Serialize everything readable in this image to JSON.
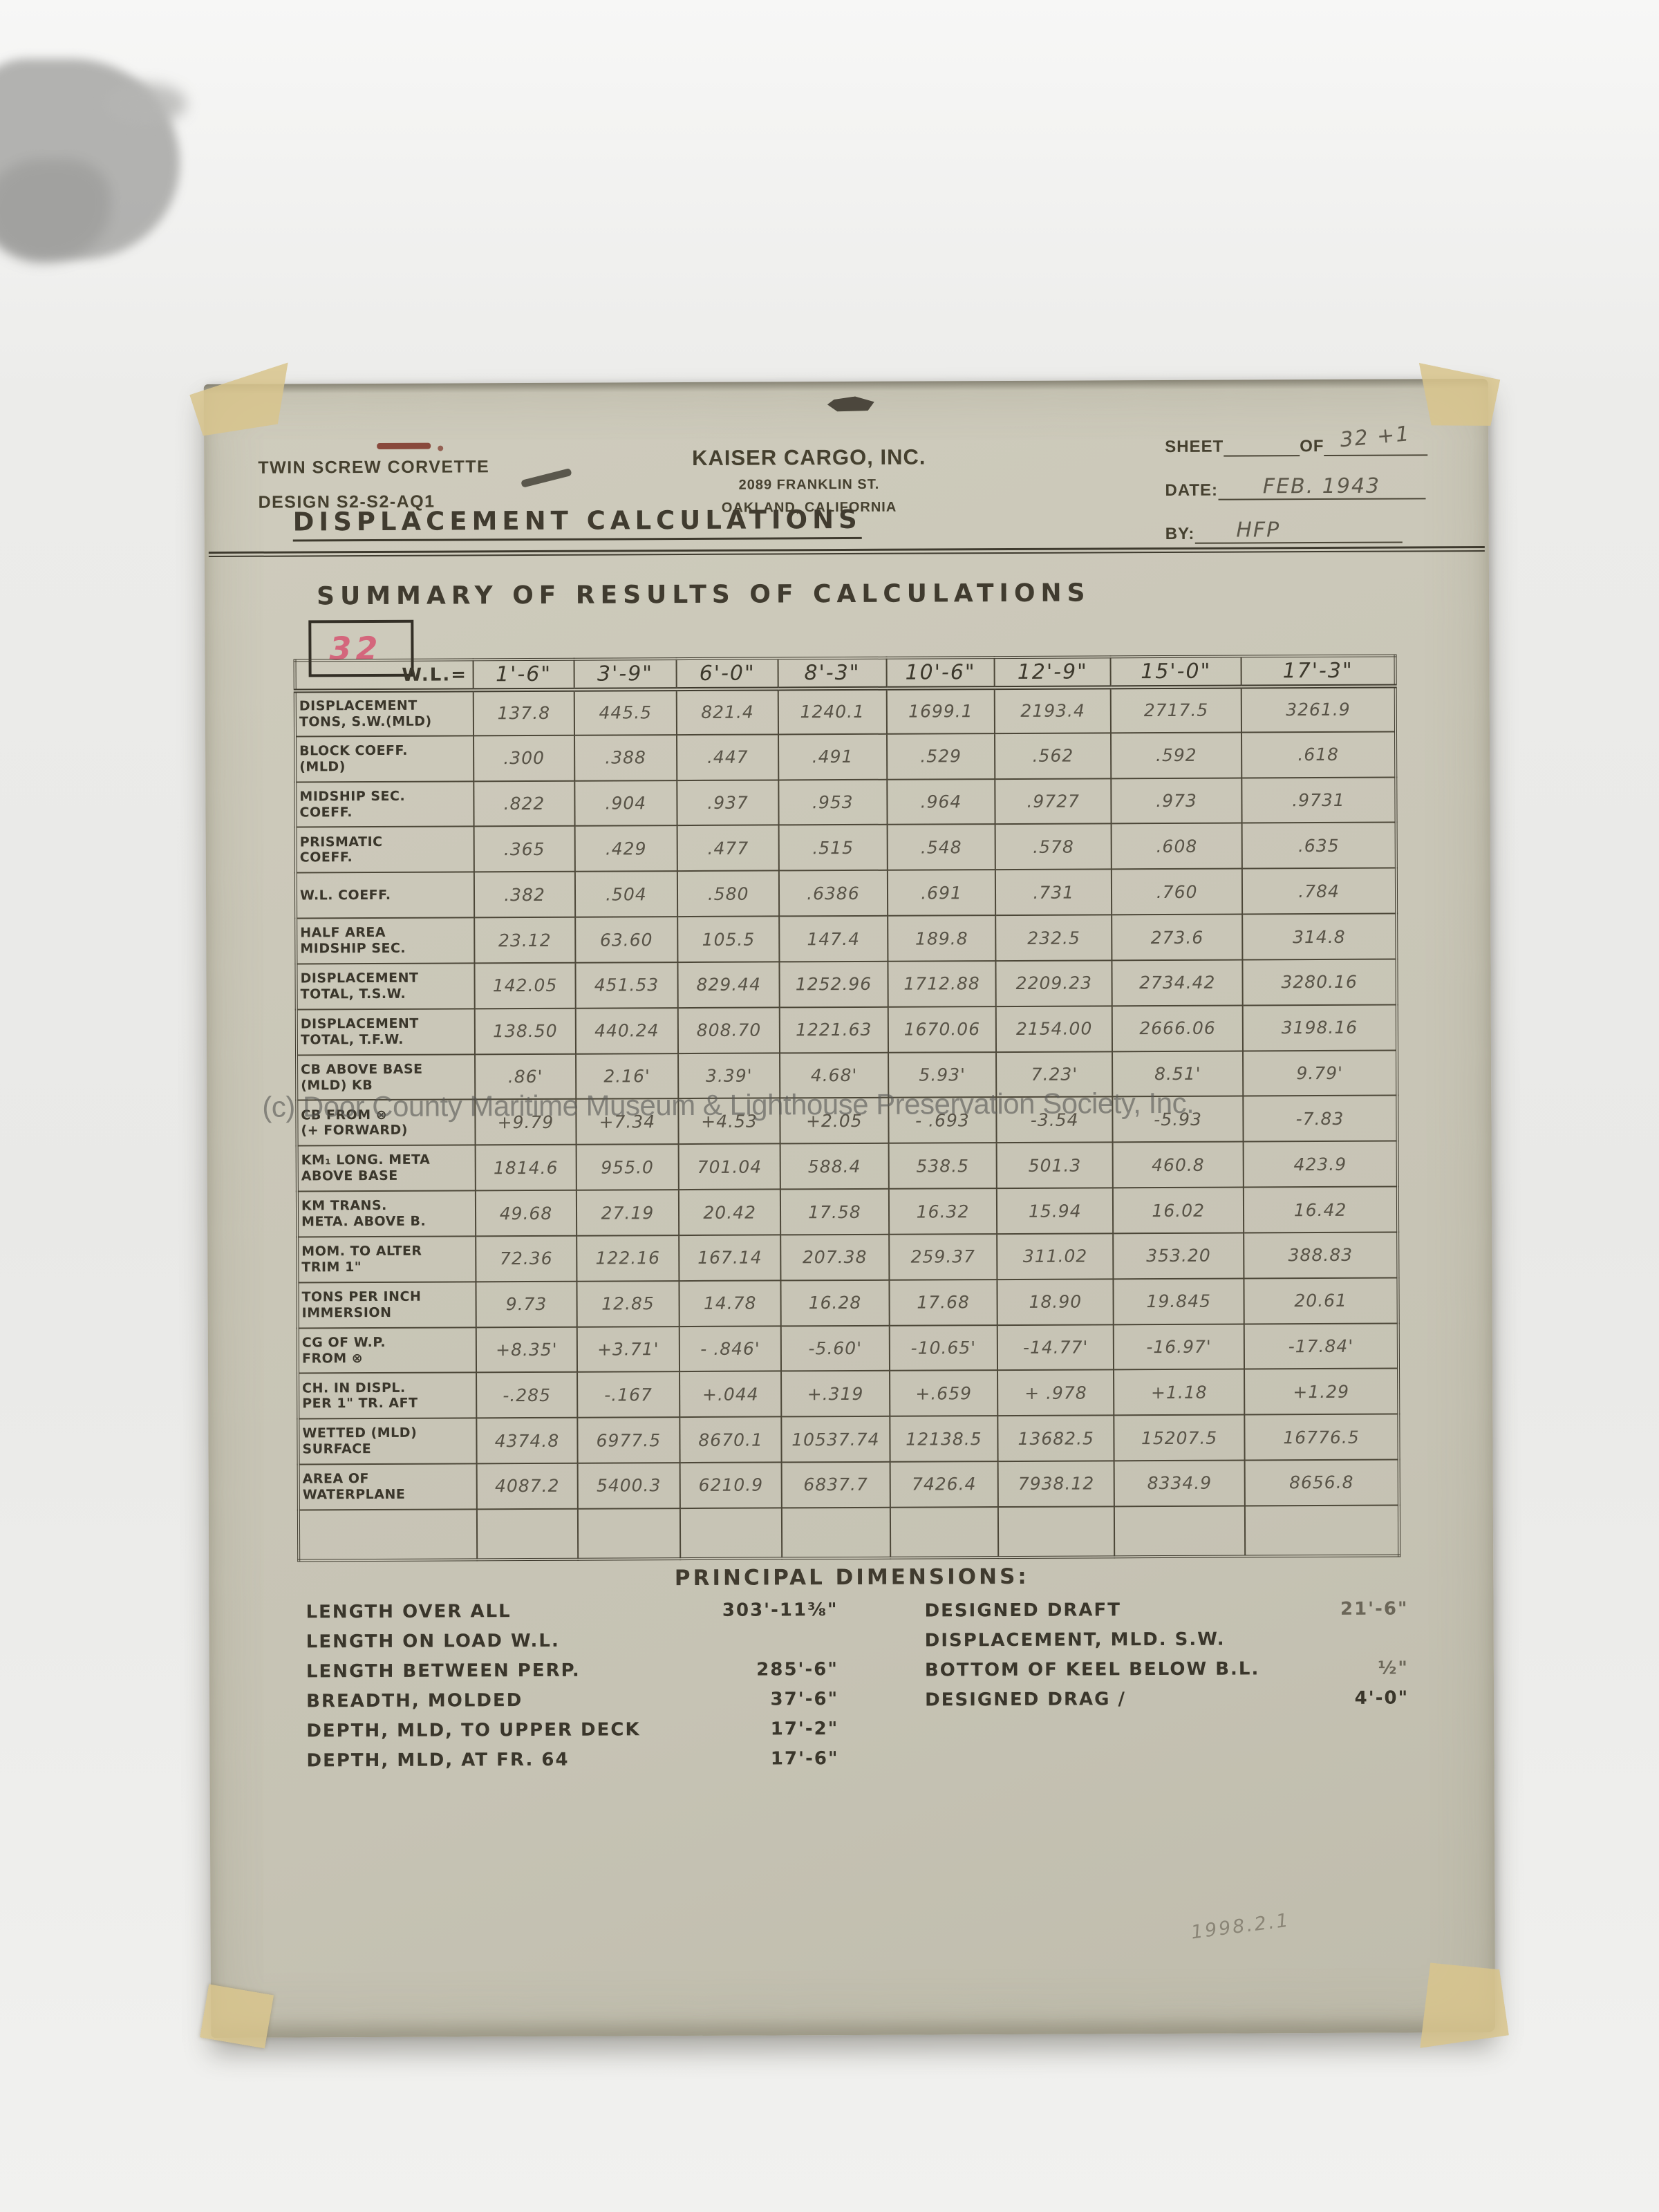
{
  "header": {
    "left": {
      "line1": "TWIN SCREW CORVETTE",
      "line2": "DESIGN S2-S2-AQ1"
    },
    "center": {
      "company": "KAISER CARGO, INC.",
      "address": "2089 FRANKLIN ST.",
      "city": "OAKLAND, CALIFORNIA"
    },
    "right": {
      "sheet_label": "SHEET",
      "of_label": "OF",
      "sheet_value": "32 +1",
      "date_label": "DATE:",
      "date_value": "FEB.  1943",
      "by_label": "BY:",
      "by_value": "HFP"
    }
  },
  "title": "DISPLACEMENT CALCULATIONS",
  "summary_title": "SUMMARY OF RESULTS OF CALCULATIONS",
  "page_number": "32",
  "table": {
    "corner_label": "W.L.=",
    "columns": [
      "1'-6\"",
      "3'-9\"",
      "6'-0\"",
      "8'-3\"",
      "10'-6\"",
      "12'-9\"",
      "15'-0\"",
      "17'-3\""
    ],
    "rows": [
      {
        "label": "DISPLACEMENT\nTONS, S.W.(MLD)",
        "values": [
          "137.8",
          "445.5",
          "821.4",
          "1240.1",
          "1699.1",
          "2193.4",
          "2717.5",
          "3261.9"
        ]
      },
      {
        "label": "BLOCK COEFF.\n(MLD)",
        "values": [
          ".300",
          ".388",
          ".447",
          ".491",
          ".529",
          ".562",
          ".592",
          ".618"
        ]
      },
      {
        "label": "MIDSHIP SEC.\nCOEFF.",
        "values": [
          ".822",
          ".904",
          ".937",
          ".953",
          ".964",
          ".9727",
          ".973",
          ".9731"
        ]
      },
      {
        "label": "PRISMATIC\nCOEFF.",
        "values": [
          ".365",
          ".429",
          ".477",
          ".515",
          ".548",
          ".578",
          ".608",
          ".635"
        ]
      },
      {
        "label": "W.L. COEFF.",
        "values": [
          ".382",
          ".504",
          ".580",
          ".6386",
          ".691",
          ".731",
          ".760",
          ".784"
        ]
      },
      {
        "label": "HALF AREA\nMIDSHIP SEC.",
        "values": [
          "23.12",
          "63.60",
          "105.5",
          "147.4",
          "189.8",
          "232.5",
          "273.6",
          "314.8"
        ]
      },
      {
        "label": "DISPLACEMENT\nTOTAL, T.S.W.",
        "values": [
          "142.05",
          "451.53",
          "829.44",
          "1252.96",
          "1712.88",
          "2209.23",
          "2734.42",
          "3280.16"
        ]
      },
      {
        "label": "DISPLACEMENT\nTOTAL, T.F.W.",
        "values": [
          "138.50",
          "440.24",
          "808.70",
          "1221.63",
          "1670.06",
          "2154.00",
          "2666.06",
          "3198.16"
        ]
      },
      {
        "label": "CB ABOVE BASE\n(MLD)  KB",
        "values": [
          ".86'",
          "2.16'",
          "3.39'",
          "4.68'",
          "5.93'",
          "7.23'",
          "8.51'",
          "9.79'"
        ]
      },
      {
        "label": "CB FROM ⊗\n(+ FORWARD)",
        "values": [
          "+9.79",
          "+7.34",
          "+4.53",
          "+2.05",
          "- .693",
          "-3.54",
          "-5.93",
          "-7.83"
        ]
      },
      {
        "label": "KM₁ LONG. META\nABOVE BASE",
        "values": [
          "1814.6",
          "955.0",
          "701.04",
          "588.4",
          "538.5",
          "501.3",
          "460.8",
          "423.9"
        ]
      },
      {
        "label": "KM TRANS.\nMETA. ABOVE B.",
        "values": [
          "49.68",
          "27.19",
          "20.42",
          "17.58",
          "16.32",
          "15.94",
          "16.02",
          "16.42"
        ]
      },
      {
        "label": "MOM. TO ALTER\nTRIM 1\"",
        "values": [
          "72.36",
          "122.16",
          "167.14",
          "207.38",
          "259.37",
          "311.02",
          "353.20",
          "388.83"
        ]
      },
      {
        "label": "TONS PER INCH\nIMMERSION",
        "values": [
          "9.73",
          "12.85",
          "14.78",
          "16.28",
          "17.68",
          "18.90",
          "19.845",
          "20.61"
        ]
      },
      {
        "label": "CG OF W.P.\nFROM ⊗",
        "values": [
          "+8.35'",
          "+3.71'",
          "- .846'",
          "-5.60'",
          "-10.65'",
          "-14.77'",
          "-16.97'",
          "-17.84'"
        ]
      },
      {
        "label": "CH. IN DISPL.\nPER 1\" TR. AFT",
        "values": [
          "-.285",
          "-.167",
          "+.044",
          "+.319",
          "+.659",
          "+ .978",
          "+1.18",
          "+1.29"
        ]
      },
      {
        "label": "WETTED (MLD)\nSURFACE",
        "values": [
          "4374.8",
          "6977.5",
          "8670.1",
          "10537.74",
          "12138.5",
          "13682.5",
          "15207.5",
          "16776.5"
        ]
      },
      {
        "label": "AREA OF\nWATERPLANE",
        "values": [
          "4087.2",
          "5400.3",
          "6210.9",
          "6837.7",
          "7426.4",
          "7938.12",
          "8334.9",
          "8656.8"
        ]
      },
      {
        "label": "",
        "empty": true,
        "values": [
          "",
          "",
          "",
          "",
          "",
          "",
          "",
          ""
        ]
      }
    ]
  },
  "principal_dimensions": {
    "heading": "PRINCIPAL DIMENSIONS:",
    "left": [
      {
        "label": "LENGTH OVER ALL",
        "value": "303'-11⅜\""
      },
      {
        "label": "LENGTH ON LOAD W.L.",
        "value": ""
      },
      {
        "label": "LENGTH BETWEEN PERP.",
        "value": "285'-6\""
      },
      {
        "label": "BREADTH, MOLDED",
        "value": "37'-6\""
      },
      {
        "label": "DEPTH, MLD, TO UPPER DECK",
        "value": "17'-2\""
      },
      {
        "label": "DEPTH, MLD, AT FR. 64",
        "value": "17'-6\""
      }
    ],
    "right": [
      {
        "label": "DESIGNED DRAFT",
        "value": "21'-6\"",
        "faint": true
      },
      {
        "label": "DISPLACEMENT, MLD. S.W.",
        "value": ""
      },
      {
        "label": "BOTTOM OF KEEL BELOW B.L.",
        "value": "½\"",
        "faint": true
      },
      {
        "label": "DESIGNED DRAG /",
        "value": "4'-0\""
      }
    ]
  },
  "watermark": "(c) Door County Maritime Museum & Lighthouse Preservation Society, Inc.",
  "accession_number": "1998.2.1",
  "colors": {
    "paper": "#c9c6b7",
    "ink": "#3a362b",
    "pencil": "#5c574a",
    "page_number_red": "#d4667c"
  }
}
